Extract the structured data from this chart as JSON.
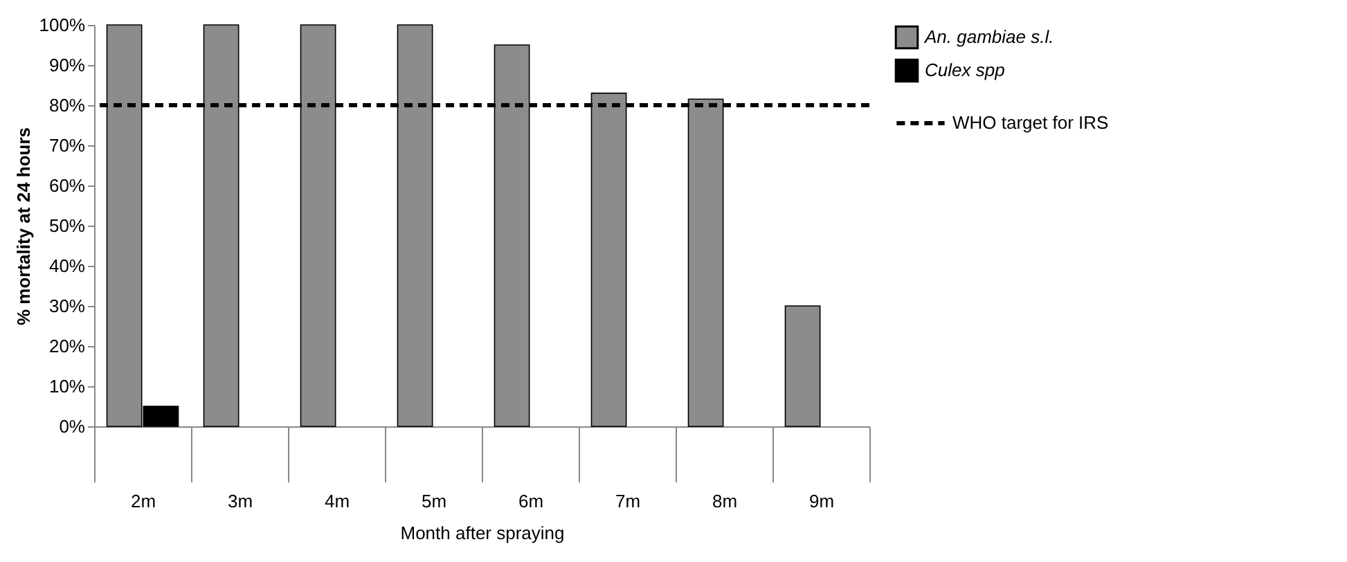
{
  "chart_data": {
    "type": "bar",
    "xlabel": "Month after spraying",
    "ylabel": "% mortality at 24 hours",
    "categories": [
      "2m",
      "3m",
      "4m",
      "5m",
      "6m",
      "7m",
      "8m",
      "9m"
    ],
    "series": [
      {
        "name": "An. gambiae s.l.",
        "color": "#8c8c8c",
        "values": [
          100,
          100,
          100,
          100,
          95,
          83,
          81.5,
          30
        ]
      },
      {
        "name": "Culex spp",
        "color": "#000000",
        "values": [
          5,
          null,
          null,
          null,
          null,
          null,
          null,
          null
        ]
      }
    ],
    "ref_lines": [
      {
        "axis": "y",
        "value": 80,
        "label": "WHO target for IRS",
        "color": "#000000",
        "line_style": "dashed"
      }
    ],
    "ylim": [
      0,
      100
    ],
    "yticks": [
      {
        "value": 0,
        "label": "0%"
      },
      {
        "value": 10,
        "label": "10%"
      },
      {
        "value": 20,
        "label": "20%"
      },
      {
        "value": 30,
        "label": "30%"
      },
      {
        "value": 40,
        "label": "40%"
      },
      {
        "value": 50,
        "label": "50%"
      },
      {
        "value": 60,
        "label": "60%"
      },
      {
        "value": 70,
        "label": "70%"
      },
      {
        "value": 80,
        "label": "80%"
      },
      {
        "value": 90,
        "label": "90%"
      },
      {
        "value": 100,
        "label": "100%"
      }
    ],
    "grid": false,
    "legend": "right"
  }
}
